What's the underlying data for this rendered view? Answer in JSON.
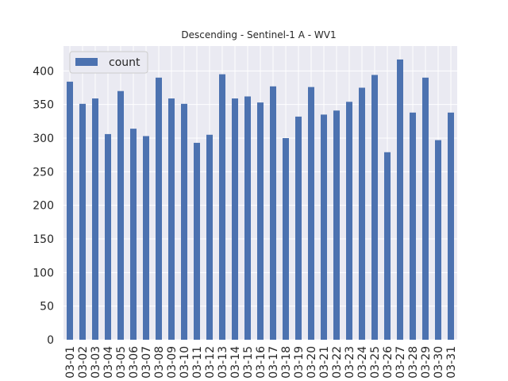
{
  "chart_data": {
    "type": "bar",
    "title": "Descending - Sentinel-1 A - WV1",
    "xlabel": "",
    "ylabel": "",
    "categories": [
      "03-01",
      "03-02",
      "03-03",
      "03-04",
      "03-05",
      "03-06",
      "03-07",
      "03-08",
      "03-09",
      "03-10",
      "03-11",
      "03-12",
      "03-13",
      "03-14",
      "03-15",
      "03-16",
      "03-17",
      "03-18",
      "03-19",
      "03-20",
      "03-21",
      "03-22",
      "03-23",
      "03-24",
      "03-25",
      "03-26",
      "03-27",
      "03-28",
      "03-29",
      "03-30",
      "03-31"
    ],
    "series": [
      {
        "name": "count",
        "color": "#4c72b0",
        "values": [
          384,
          351,
          359,
          306,
          370,
          314,
          303,
          390,
          359,
          351,
          293,
          305,
          395,
          359,
          362,
          353,
          377,
          300,
          332,
          376,
          335,
          341,
          354,
          375,
          394,
          279,
          417,
          338,
          390,
          297,
          338
        ]
      }
    ],
    "yticks": [
      0,
      50,
      100,
      150,
      200,
      250,
      300,
      350,
      400
    ],
    "ylim": [
      0,
      437
    ],
    "grid": true,
    "legend_position": "top-left",
    "colors": {
      "background": "#eaeaf2",
      "grid": "#ffffff",
      "bar": "#4c72b0"
    }
  }
}
